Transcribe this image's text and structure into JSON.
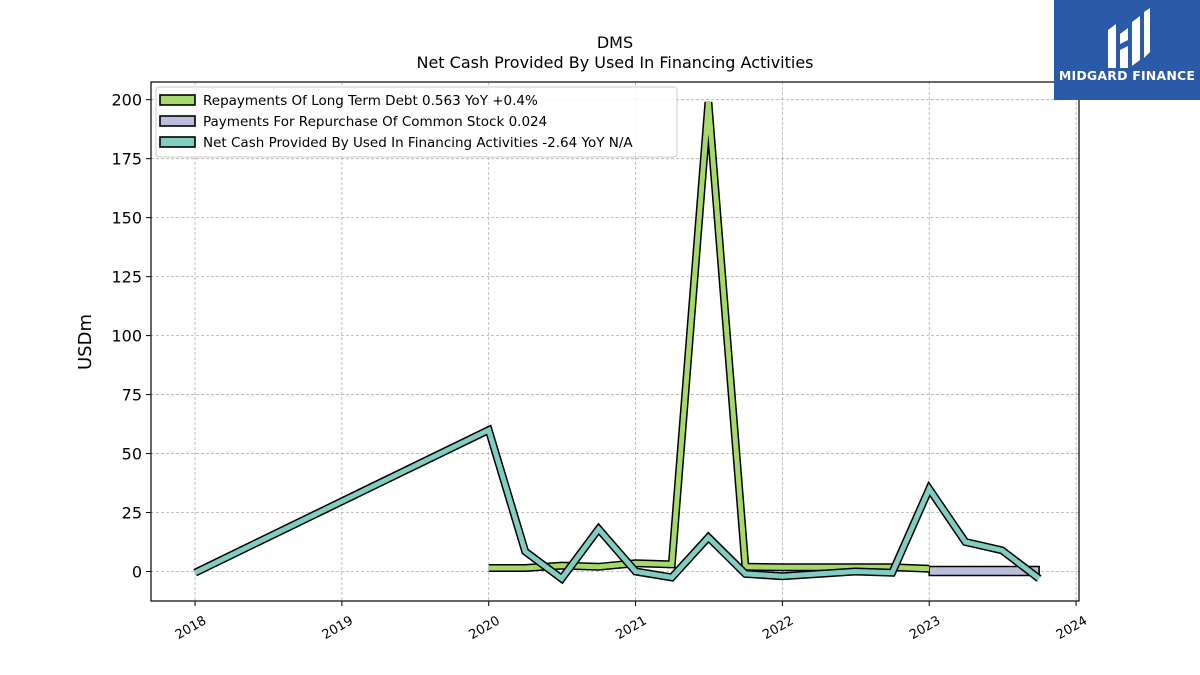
{
  "chart_data": {
    "type": "line",
    "title": "DMS",
    "subtitle": "Net Cash Provided By Used In Financing Activities",
    "ylabel": "USDm",
    "xlabel": "",
    "ylim": [
      -12.5,
      207.5
    ],
    "xlim": [
      2017.7,
      2024.02
    ],
    "yticks": [
      0,
      25,
      50,
      75,
      100,
      125,
      150,
      175,
      200
    ],
    "xticks": [
      2018,
      2019,
      2020,
      2021,
      2022,
      2023,
      2024
    ],
    "grid": true,
    "legend_position": "top-left",
    "series": [
      {
        "name": "Repayments Of Long Term Debt  0.563 YoY +0.4%",
        "color": "#a6d96a",
        "x": [
          "2020-01-01",
          "2020-04-01",
          "2020-07-01",
          "2020-10-01",
          "2021-01-01",
          "2021-04-01",
          "2021-07-01",
          "2021-10-01",
          "2022-01-01",
          "2022-04-01",
          "2022-07-01",
          "2022-10-01",
          "2023-01-01"
        ],
        "values": [
          1.5,
          1.5,
          2.5,
          2.0,
          3.5,
          3.0,
          199.0,
          2.0,
          1.8,
          1.8,
          1.8,
          1.8,
          1.2
        ]
      },
      {
        "name": "Payments For Repurchase Of Common Stock  0.024",
        "color": "#bcbddc",
        "x": [
          "2023-01-01",
          "2023-04-01",
          "2023-07-01",
          "2023-10-01"
        ],
        "values": [
          0.5,
          0.8,
          0.8,
          0.8
        ]
      },
      {
        "name": "Net Cash Provided By Used In Financing Activities  -2.64 YoY N/A",
        "color": "#80cdc1",
        "x": [
          "2018-01-01",
          "2020-01-01",
          "2020-04-01",
          "2020-07-01",
          "2020-10-01",
          "2021-01-01",
          "2021-04-01",
          "2021-07-01",
          "2021-10-01",
          "2022-01-01",
          "2022-04-01",
          "2022-07-01",
          "2022-10-01",
          "2023-01-01",
          "2023-04-01",
          "2023-07-01",
          "2023-10-01"
        ],
        "values": [
          -0.5,
          60.0,
          8.5,
          -3.0,
          18.0,
          0.0,
          -2.5,
          14.5,
          -1.0,
          -2.0,
          -1.0,
          0.0,
          -0.5,
          35.0,
          12.5,
          9.0,
          -3.0
        ]
      }
    ]
  },
  "logo": {
    "text": "MIDGARD FINANCE",
    "background": "#2a5aa8"
  }
}
